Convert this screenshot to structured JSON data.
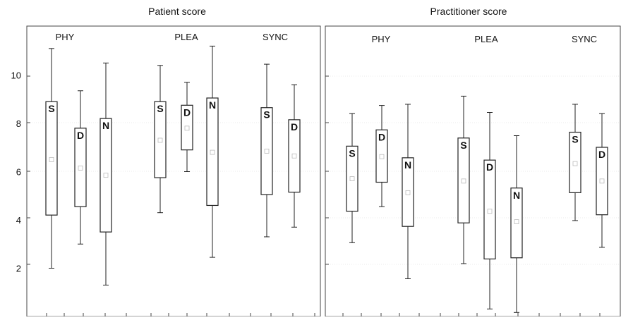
{
  "chart_data": [
    {
      "type": "box",
      "title": "Patient score",
      "ylim": [
        0,
        11.8
      ],
      "yticks": [
        2,
        4,
        6,
        8,
        10
      ],
      "groups": [
        "PHY",
        "PLEA",
        "SYNC"
      ],
      "boxes": [
        {
          "group": "PHY",
          "label": "S",
          "whisker_low": 2.0,
          "q1": 4.2,
          "median": 6.5,
          "q3": 8.9,
          "whisker_high": 11.1
        },
        {
          "group": "PHY",
          "label": "D",
          "whisker_low": 3.0,
          "q1": 4.55,
          "median": 6.15,
          "q3": 7.8,
          "whisker_high": 9.35
        },
        {
          "group": "PHY",
          "label": "N",
          "whisker_low": 1.3,
          "q1": 3.5,
          "median": 5.85,
          "q3": 8.2,
          "whisker_high": 10.5
        },
        {
          "group": "PLEA",
          "label": "S",
          "whisker_low": 4.3,
          "q1": 5.75,
          "median": 7.3,
          "q3": 8.9,
          "whisker_high": 10.4
        },
        {
          "group": "PLEA",
          "label": "D",
          "whisker_low": 6.0,
          "q1": 6.9,
          "median": 7.8,
          "q3": 8.75,
          "whisker_high": 9.7
        },
        {
          "group": "PLEA",
          "label": "N",
          "whisker_low": 2.45,
          "q1": 4.6,
          "median": 6.8,
          "q3": 9.05,
          "whisker_high": 11.2
        },
        {
          "group": "SYNC",
          "label": "S",
          "whisker_low": 3.3,
          "q1": 5.05,
          "median": 6.85,
          "q3": 8.65,
          "whisker_high": 10.45
        },
        {
          "group": "SYNC",
          "label": "D",
          "whisker_low": 3.7,
          "q1": 5.15,
          "median": 6.65,
          "q3": 8.15,
          "whisker_high": 9.6
        }
      ]
    },
    {
      "type": "box",
      "title": "Practitioner score",
      "groups": [
        "PHY",
        "PLEA",
        "SYNC"
      ],
      "boxes": [
        {
          "group": "PHY",
          "label": "S",
          "whisker_low": 2.9,
          "q1": 4.25,
          "median": 5.65,
          "q3": 7.05,
          "whisker_high": 8.45
        },
        {
          "group": "PHY",
          "label": "D",
          "whisker_low": 4.45,
          "q1": 5.5,
          "median": 6.6,
          "q3": 7.75,
          "whisker_high": 8.8
        },
        {
          "group": "PHY",
          "label": "N",
          "whisker_low": 1.35,
          "q1": 3.6,
          "median": 5.05,
          "q3": 6.55,
          "whisker_high": 8.85
        },
        {
          "group": "PLEA",
          "label": "S",
          "whisker_low": 2.0,
          "q1": 3.75,
          "median": 5.55,
          "q3": 7.4,
          "whisker_high": 9.2
        },
        {
          "group": "PLEA",
          "label": "D",
          "whisker_low": 0.05,
          "q1": 2.2,
          "median": 4.25,
          "q3": 6.45,
          "whisker_high": 8.5
        },
        {
          "group": "PLEA",
          "label": "N",
          "whisker_low": -0.1,
          "q1": 2.25,
          "median": 3.8,
          "q3": 5.25,
          "whisker_high": 7.5
        },
        {
          "group": "SYNC",
          "label": "S",
          "whisker_low": 3.85,
          "q1": 5.05,
          "median": 6.3,
          "q3": 7.65,
          "whisker_high": 8.85
        },
        {
          "group": "SYNC",
          "label": "D",
          "whisker_low": 2.7,
          "q1": 4.1,
          "median": 5.55,
          "q3": 7.0,
          "whisker_high": 8.45
        }
      ]
    }
  ]
}
